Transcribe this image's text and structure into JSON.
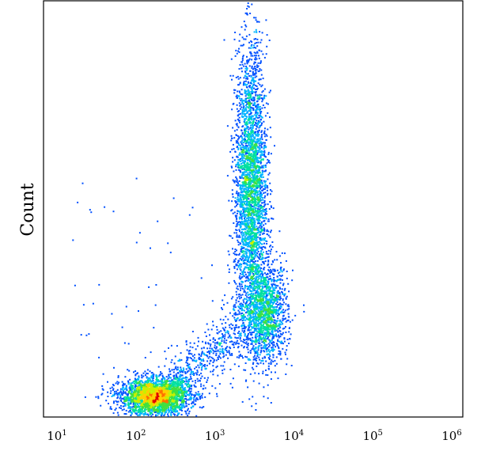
{
  "chart_data": {
    "type": "scatter",
    "title": "",
    "xlabel": "",
    "ylabel": "Count",
    "x_scale": "log",
    "xlim": [
      10,
      1000000
    ],
    "ylim": [
      0,
      100
    ],
    "x_ticks": [
      {
        "value": 10,
        "base": "10",
        "exp": "1"
      },
      {
        "value": 100,
        "base": "10",
        "exp": "2"
      },
      {
        "value": 1000,
        "base": "10",
        "exp": "3"
      },
      {
        "value": 10000,
        "base": "10",
        "exp": "4"
      },
      {
        "value": 100000,
        "base": "10",
        "exp": "5"
      },
      {
        "value": 1000000,
        "base": "10",
        "exp": "6"
      }
    ],
    "grid": false,
    "legend": "none",
    "color_scale": [
      "#0000c8",
      "#0050ff",
      "#00b4ff",
      "#00e0a0",
      "#40e040",
      "#c8f000",
      "#ffd000",
      "#ff7000",
      "#e00000"
    ],
    "populations": [
      {
        "x_center": 170,
        "x_spread_decades": 0.22,
        "y_center": 5,
        "y_spread": 2.2,
        "density": "high"
      },
      {
        "x_center": 2800,
        "x_spread_decades": 0.1,
        "y_center": 55,
        "y_spread": 17,
        "density": "medium"
      },
      {
        "x_center": 4500,
        "x_spread_decades": 0.13,
        "y_center": 25,
        "y_spread": 6,
        "density": "low"
      }
    ]
  }
}
